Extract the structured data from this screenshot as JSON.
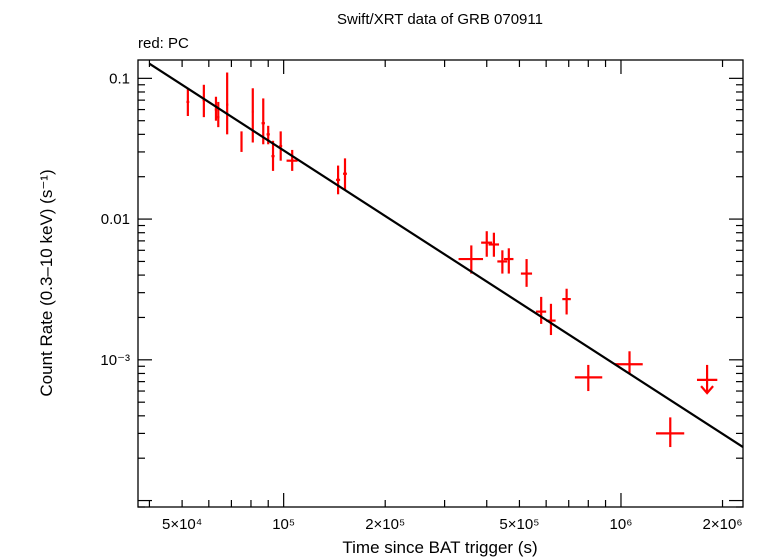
{
  "chart_data": {
    "type": "scatter",
    "title": "Swift/XRT data of GRB 070911",
    "subtitle": "red: PC",
    "xlabel": "Time since BAT trigger (s)",
    "ylabel": "Count Rate (0.3–10 keV) (s⁻¹)",
    "x_scale": "log",
    "y_scale": "log",
    "xlim": [
      37000,
      2300000
    ],
    "ylim": [
      9e-05,
      0.135
    ],
    "x_ticks": [
      {
        "value": 50000,
        "label": "5×10⁴"
      },
      {
        "value": 100000,
        "label": "10⁵"
      },
      {
        "value": 200000,
        "label": "2×10⁵"
      },
      {
        "value": 500000,
        "label": "5×10⁵"
      },
      {
        "value": 1000000,
        "label": "10⁶"
      },
      {
        "value": 2000000,
        "label": "2×10⁶"
      }
    ],
    "y_ticks": [
      {
        "value": 0.1,
        "label": "0.1"
      },
      {
        "value": 0.01,
        "label": "0.01"
      },
      {
        "value": 0.001,
        "label": "10⁻³"
      }
    ],
    "grid": false,
    "legend": "none",
    "series": [
      {
        "color": "#ff0000",
        "points": [
          {
            "x": 52000,
            "xlo": 51500,
            "xhi": 52500,
            "y": 0.068,
            "ylo": 0.054,
            "yhi": 0.085
          },
          {
            "x": 58000,
            "xlo": 57500,
            "xhi": 58500,
            "y": 0.07,
            "ylo": 0.053,
            "yhi": 0.09
          },
          {
            "x": 63000,
            "xlo": 62500,
            "xhi": 63500,
            "y": 0.06,
            "ylo": 0.05,
            "yhi": 0.074
          },
          {
            "x": 64000,
            "xlo": 63500,
            "xhi": 64500,
            "y": 0.053,
            "ylo": 0.045,
            "yhi": 0.068
          },
          {
            "x": 68000,
            "xlo": 67500,
            "xhi": 68500,
            "y": 0.065,
            "ylo": 0.04,
            "yhi": 0.11
          },
          {
            "x": 75000,
            "xlo": 74500,
            "xhi": 75500,
            "y": 0.035,
            "ylo": 0.03,
            "yhi": 0.042
          },
          {
            "x": 81000,
            "xlo": 80500,
            "xhi": 81500,
            "y": 0.058,
            "ylo": 0.035,
            "yhi": 0.085
          },
          {
            "x": 87000,
            "xlo": 86000,
            "xhi": 88000,
            "y": 0.048,
            "ylo": 0.034,
            "yhi": 0.072
          },
          {
            "x": 90000,
            "xlo": 89000,
            "xhi": 91000,
            "y": 0.04,
            "ylo": 0.034,
            "yhi": 0.046
          },
          {
            "x": 93000,
            "xlo": 92000,
            "xhi": 94000,
            "y": 0.028,
            "ylo": 0.022,
            "yhi": 0.036
          },
          {
            "x": 98000,
            "xlo": 97000,
            "xhi": 99000,
            "y": 0.033,
            "ylo": 0.026,
            "yhi": 0.042
          },
          {
            "x": 106000,
            "xlo": 102000,
            "xhi": 110000,
            "y": 0.026,
            "ylo": 0.022,
            "yhi": 0.031
          },
          {
            "x": 145000,
            "xlo": 143000,
            "xhi": 147000,
            "y": 0.019,
            "ylo": 0.015,
            "yhi": 0.024
          },
          {
            "x": 152000,
            "xlo": 150000,
            "xhi": 154000,
            "y": 0.021,
            "ylo": 0.016,
            "yhi": 0.027
          },
          {
            "x": 360000,
            "xlo": 330000,
            "xhi": 390000,
            "y": 0.0052,
            "ylo": 0.0041,
            "yhi": 0.0065
          },
          {
            "x": 400000,
            "xlo": 385000,
            "xhi": 415000,
            "y": 0.0068,
            "ylo": 0.0054,
            "yhi": 0.0082
          },
          {
            "x": 420000,
            "xlo": 405000,
            "xhi": 435000,
            "y": 0.0066,
            "ylo": 0.0054,
            "yhi": 0.008
          },
          {
            "x": 445000,
            "xlo": 430000,
            "xhi": 460000,
            "y": 0.005,
            "ylo": 0.0041,
            "yhi": 0.006
          },
          {
            "x": 465000,
            "xlo": 450000,
            "xhi": 480000,
            "y": 0.0052,
            "ylo": 0.0041,
            "yhi": 0.0062
          },
          {
            "x": 525000,
            "xlo": 505000,
            "xhi": 545000,
            "y": 0.0041,
            "ylo": 0.0033,
            "yhi": 0.0052
          },
          {
            "x": 580000,
            "xlo": 560000,
            "xhi": 600000,
            "y": 0.0022,
            "ylo": 0.0018,
            "yhi": 0.0028
          },
          {
            "x": 620000,
            "xlo": 600000,
            "xhi": 640000,
            "y": 0.0019,
            "ylo": 0.0015,
            "yhi": 0.0025
          },
          {
            "x": 690000,
            "xlo": 670000,
            "xhi": 710000,
            "y": 0.0027,
            "ylo": 0.0021,
            "yhi": 0.0032
          },
          {
            "x": 800000,
            "xlo": 730000,
            "xhi": 880000,
            "y": 0.00075,
            "ylo": 0.0006,
            "yhi": 0.00092
          },
          {
            "x": 1060000,
            "xlo": 960000,
            "xhi": 1160000,
            "y": 0.00093,
            "ylo": 0.00079,
            "yhi": 0.00115
          },
          {
            "x": 1400000,
            "xlo": 1270000,
            "xhi": 1540000,
            "y": 0.0003,
            "ylo": 0.00024,
            "yhi": 0.00039
          }
        ],
        "upper_limits": [
          {
            "x": 1800000,
            "xlo": 1680000,
            "xhi": 1930000,
            "y": 0.00072,
            "yhi": 0.00092,
            "ylo": 0.00058
          }
        ]
      }
    ],
    "fit_line": {
      "color": "#000000",
      "points": [
        [
          40000,
          0.127
        ],
        [
          2300000,
          0.00024
        ]
      ]
    }
  }
}
